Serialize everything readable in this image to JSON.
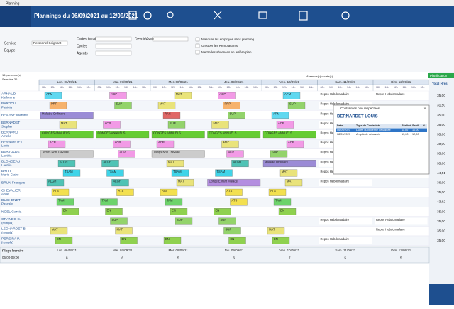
{
  "window": {
    "title": "Planning"
  },
  "toolbar": {
    "title": "Plannings  du 06/09/2021 au 12/09/2021"
  },
  "filters": {
    "left": [
      "Service",
      "Équipe"
    ],
    "service_value": "Personnel Soignant",
    "middle": [
      "Codes horai",
      "Cycles",
      "Agents"
    ],
    "right": "Devoir/Avoir",
    "options": [
      "Masquer les employés sans planning",
      "Grouper les Remplaçants",
      "Mettre les absences en arrière plan"
    ]
  },
  "grid": {
    "persons": "16 personne(s)",
    "week": "Semaine 36",
    "short_abs": "Absence(s) courte(s)",
    "planif": "Planification",
    "total": "Total Hres",
    "days": [
      "Lun. 06/09/21",
      "Mar. 07/09/21",
      "Mer. 08/09/21",
      "Jeu. 09/09/21",
      "Ven. 10/09/21",
      "Sam. 11/09/21",
      "Dim. 12/09/21"
    ],
    "hours": [
      "08h",
      "10h",
      "12h",
      "14h",
      "16h",
      "18h"
    ]
  },
  "rows": [
    {
      "name": "ARNAUD",
      "first": "Katherine",
      "total": "35,00",
      "cells": [
        {
          "code": "APM",
          "color": "#5fd8f0"
        },
        {
          "code": "ACP",
          "color": "#f29ae6"
        },
        {
          "code": "MAT",
          "color": "#e9e37a"
        },
        {
          "code": "ACP",
          "color": "#f29ae6"
        },
        {
          "code": "APM",
          "color": "#5fd8f0"
        },
        {
          "code": "Repos Hebdomadaire",
          "color": "#ffffff"
        },
        {
          "code": "Repos Hebdomadaire",
          "color": "#ffffff"
        }
      ]
    },
    {
      "name": "BARDOU",
      "first": "Patricia",
      "total": "31,50",
      "cells": [
        {
          "code": "PRP",
          "color": "#f6b26b"
        },
        {
          "code": "SUP",
          "color": "#93d36b"
        },
        {
          "code": "MAT",
          "color": "#e9e37a"
        },
        {
          "code": "PRP",
          "color": "#f6b26b"
        },
        {
          "code": "SUP",
          "color": "#93d36b"
        },
        {
          "code": "Repos Hebdomadaire",
          "color": "#ffffff"
        },
        null
      ]
    },
    {
      "name": "BEARNE Martine",
      "first": null,
      "total": "35,00",
      "cells": [
        {
          "code": "Maladie Ordinaire",
          "color": "#9b8bd6"
        },
        null,
        {
          "code": "RAC",
          "color": "#e06666"
        },
        {
          "code": "SUP",
          "color": "#93d36b"
        },
        {
          "code": "APM",
          "color": "#5fd8f0"
        },
        {
          "code": "Repos Hebdomadaire",
          "color": "#ffffff"
        },
        null
      ]
    },
    {
      "name": "BERNADET",
      "first": "Stephen",
      "total": "36,00",
      "cells": [
        {
          "code": "MAT",
          "color": "#e9e37a"
        },
        {
          "code": "ACP",
          "color": "#f29ae6"
        },
        {
          "code": "SUP",
          "color": "#93d36b"
        },
        {
          "code": "MAT",
          "color": "#e9e37a"
        },
        {
          "code": "ACP",
          "color": "#f29ae6"
        },
        {
          "code": "Repos Hebdomadaire",
          "color": "#ffffff"
        },
        null
      ]
    },
    {
      "name": "BERNARD",
      "first": "Amelie",
      "total": "35,00",
      "cells": [
        {
          "code": "CONGES ANNUELS",
          "color": "#66cc33"
        },
        {
          "code": "CONGES ANNUELS",
          "color": "#66cc33"
        },
        {
          "code": "CONGES ANNUELS",
          "color": "#66cc33"
        },
        {
          "code": "CONGES ANNUELS",
          "color": "#66cc33"
        },
        {
          "code": "CONGES ANNUELS",
          "color": "#66cc33"
        },
        {
          "code": "Repos Hebdomadaire",
          "color": "#ffffff"
        },
        null
      ]
    },
    {
      "name": "BERNARDET",
      "first": "Louis",
      "total": "39,00",
      "cells": [
        {
          "code": "ACP",
          "color": "#f29ae6"
        },
        {
          "code": "ACP",
          "color": "#f29ae6"
        },
        {
          "code": "ACP",
          "color": "#f29ae6"
        },
        {
          "code": "MAT",
          "color": "#e9e37a"
        },
        {
          "code": "ACP",
          "color": "#f29ae6"
        },
        {
          "code": "Repos Hebdomadaire",
          "color": "#ffffff"
        },
        null
      ]
    },
    {
      "name": "BERTOLDE",
      "first": "Laetitia",
      "total": "35,00",
      "cells": [
        {
          "code": "Temps Non Travaillé",
          "color": "#cccccc"
        },
        {
          "code": "ACP",
          "color": "#f29ae6"
        },
        {
          "code": "Temps Non Travaillé",
          "color": "#cccccc"
        },
        {
          "code": "ACP",
          "color": "#f29ae6"
        },
        {
          "code": "SUP",
          "color": "#93d36b"
        },
        {
          "code": "Repos Hebdomadaire",
          "color": "#ffffff"
        },
        null
      ]
    },
    {
      "name": "BLONDEAU",
      "first": "Laetitia",
      "total": "35,00",
      "cells": [
        {
          "code": "ALGH",
          "color": "#4fc3b5"
        },
        {
          "code": "ALGH",
          "color": "#4fc3b5"
        },
        {
          "code": "MAT",
          "color": "#e9e37a"
        },
        {
          "code": "ALGH",
          "color": "#4fc3b5"
        },
        {
          "code": "Maladie Ordinaire",
          "color": "#9b8bd6"
        },
        {
          "code": "Repos Hebdomadaire",
          "color": "#ffffff"
        },
        null
      ]
    },
    {
      "name": "BRITT",
      "first": "Marie-Claire",
      "total": "44,51",
      "cells": [
        {
          "code": "TSAM",
          "color": "#3fd4e8"
        },
        {
          "code": "TSAM",
          "color": "#3fd4e8"
        },
        {
          "code": "TSAM",
          "color": "#3fd4e8"
        },
        {
          "code": "TSAM",
          "color": "#3fd4e8"
        },
        {
          "code": "MAT",
          "color": "#e9e37a"
        },
        {
          "code": "Repos Hebdomadaire",
          "color": "#ffffff"
        },
        null
      ]
    },
    {
      "name": "BRUN François",
      "first": null,
      "total": "36,00",
      "cells": [
        {
          "code": "ALGH",
          "color": "#4fc3b5"
        },
        {
          "code": "ALGH",
          "color": "#4fc3b5"
        },
        {
          "code": "MAT",
          "color": "#e9e37a"
        },
        {
          "code": "Congé Enfant Malade",
          "color": "#b48ee0"
        },
        {
          "code": "MAT",
          "color": "#e9e37a"
        },
        {
          "code": "Repos Hebdomadaire",
          "color": "#ffffff"
        },
        null
      ]
    },
    {
      "name": "CHEVALIER",
      "first": "Anne",
      "total": "35,00",
      "cells": [
        {
          "code": "ATS",
          "color": "#f3e04f"
        },
        {
          "code": "ATS",
          "color": "#f3e04f"
        },
        {
          "code": "ATS",
          "color": "#f3e04f"
        },
        {
          "code": "ATS",
          "color": "#f3e04f"
        },
        {
          "code": "ATS",
          "color": "#f3e04f"
        },
        null,
        null
      ]
    },
    {
      "name": "DUCHENET",
      "first": "Pascale",
      "total": "43,62",
      "cells": [
        {
          "code": "TAM",
          "color": "#6dd36b"
        },
        {
          "code": "TAM",
          "color": "#6dd36b"
        },
        {
          "code": "TAM",
          "color": "#6dd36b"
        },
        {
          "code": "ATS",
          "color": "#f3e04f"
        },
        {
          "code": "TAM",
          "color": "#6dd36b"
        },
        null,
        null
      ]
    },
    {
      "name": "NOEL Garcia",
      "first": null,
      "total": "35,00",
      "cells": [
        {
          "code": "EN",
          "color": "#8fd14f"
        },
        {
          "code": "EN",
          "color": "#8fd14f"
        },
        {
          "code": "EN",
          "color": "#8fd14f"
        },
        {
          "code": "EN",
          "color": "#8fd14f"
        },
        {
          "code": "EN",
          "color": "#8fd14f"
        },
        null,
        null
      ]
    },
    {
      "name": "GRANDO C.",
      "first": "(rempla)",
      "total": "35,00",
      "cells": [
        null,
        {
          "code": "SUP",
          "color": "#93d36b"
        },
        {
          "code": "SUP",
          "color": "#93d36b"
        },
        {
          "code": "SUP",
          "color": "#93d36b"
        },
        null,
        {
          "code": "Repos Hebdomadaire",
          "color": "#ffffff"
        },
        {
          "code": "Repos Hebdomadaire",
          "color": "#ffffff"
        }
      ]
    },
    {
      "name": "LEONARDET B.",
      "first": "(rempla)",
      "total": "35,00",
      "cells": [
        {
          "code": "MAT",
          "color": "#e9e37a"
        },
        {
          "code": "MAT",
          "color": "#e9e37a"
        },
        null,
        {
          "code": "SUP",
          "color": "#93d36b"
        },
        {
          "code": "MAT",
          "color": "#e9e37a"
        },
        null,
        {
          "code": "Repos Hebdomadaire",
          "color": "#ffffff"
        }
      ]
    },
    {
      "name": "PEREIRA P.",
      "first": "(rempla)",
      "total": "35,00",
      "cells": [
        {
          "code": "EN",
          "color": "#8fd14f"
        },
        {
          "code": "EN",
          "color": "#8fd14f"
        },
        {
          "code": "EN",
          "color": "#8fd14f"
        },
        {
          "code": "EN",
          "color": "#8fd14f"
        },
        {
          "code": "EN",
          "color": "#8fd14f"
        },
        {
          "code": "Repos Hebdomadaire",
          "color": "#ffffff"
        },
        null
      ]
    }
  ],
  "footer": {
    "label": "Plage horaire",
    "range": "06:00-09:00",
    "counts": [
      8,
      6,
      5,
      6,
      7,
      5,
      5
    ]
  },
  "popup": {
    "title": "Contraintes non respectées",
    "person": "BERNARDET LOUIS",
    "headers": [
      "Date",
      "Type de Contrainte",
      "Réalisé",
      "Seuil",
      "%"
    ],
    "rows": [
      [
        "06/09/2021",
        "Durée quotidienne dépassée",
        "11,00",
        "10,00"
      ],
      [
        "08/09/2021",
        "Amplitude dépassée",
        "13,00",
        "12,00"
      ]
    ]
  }
}
